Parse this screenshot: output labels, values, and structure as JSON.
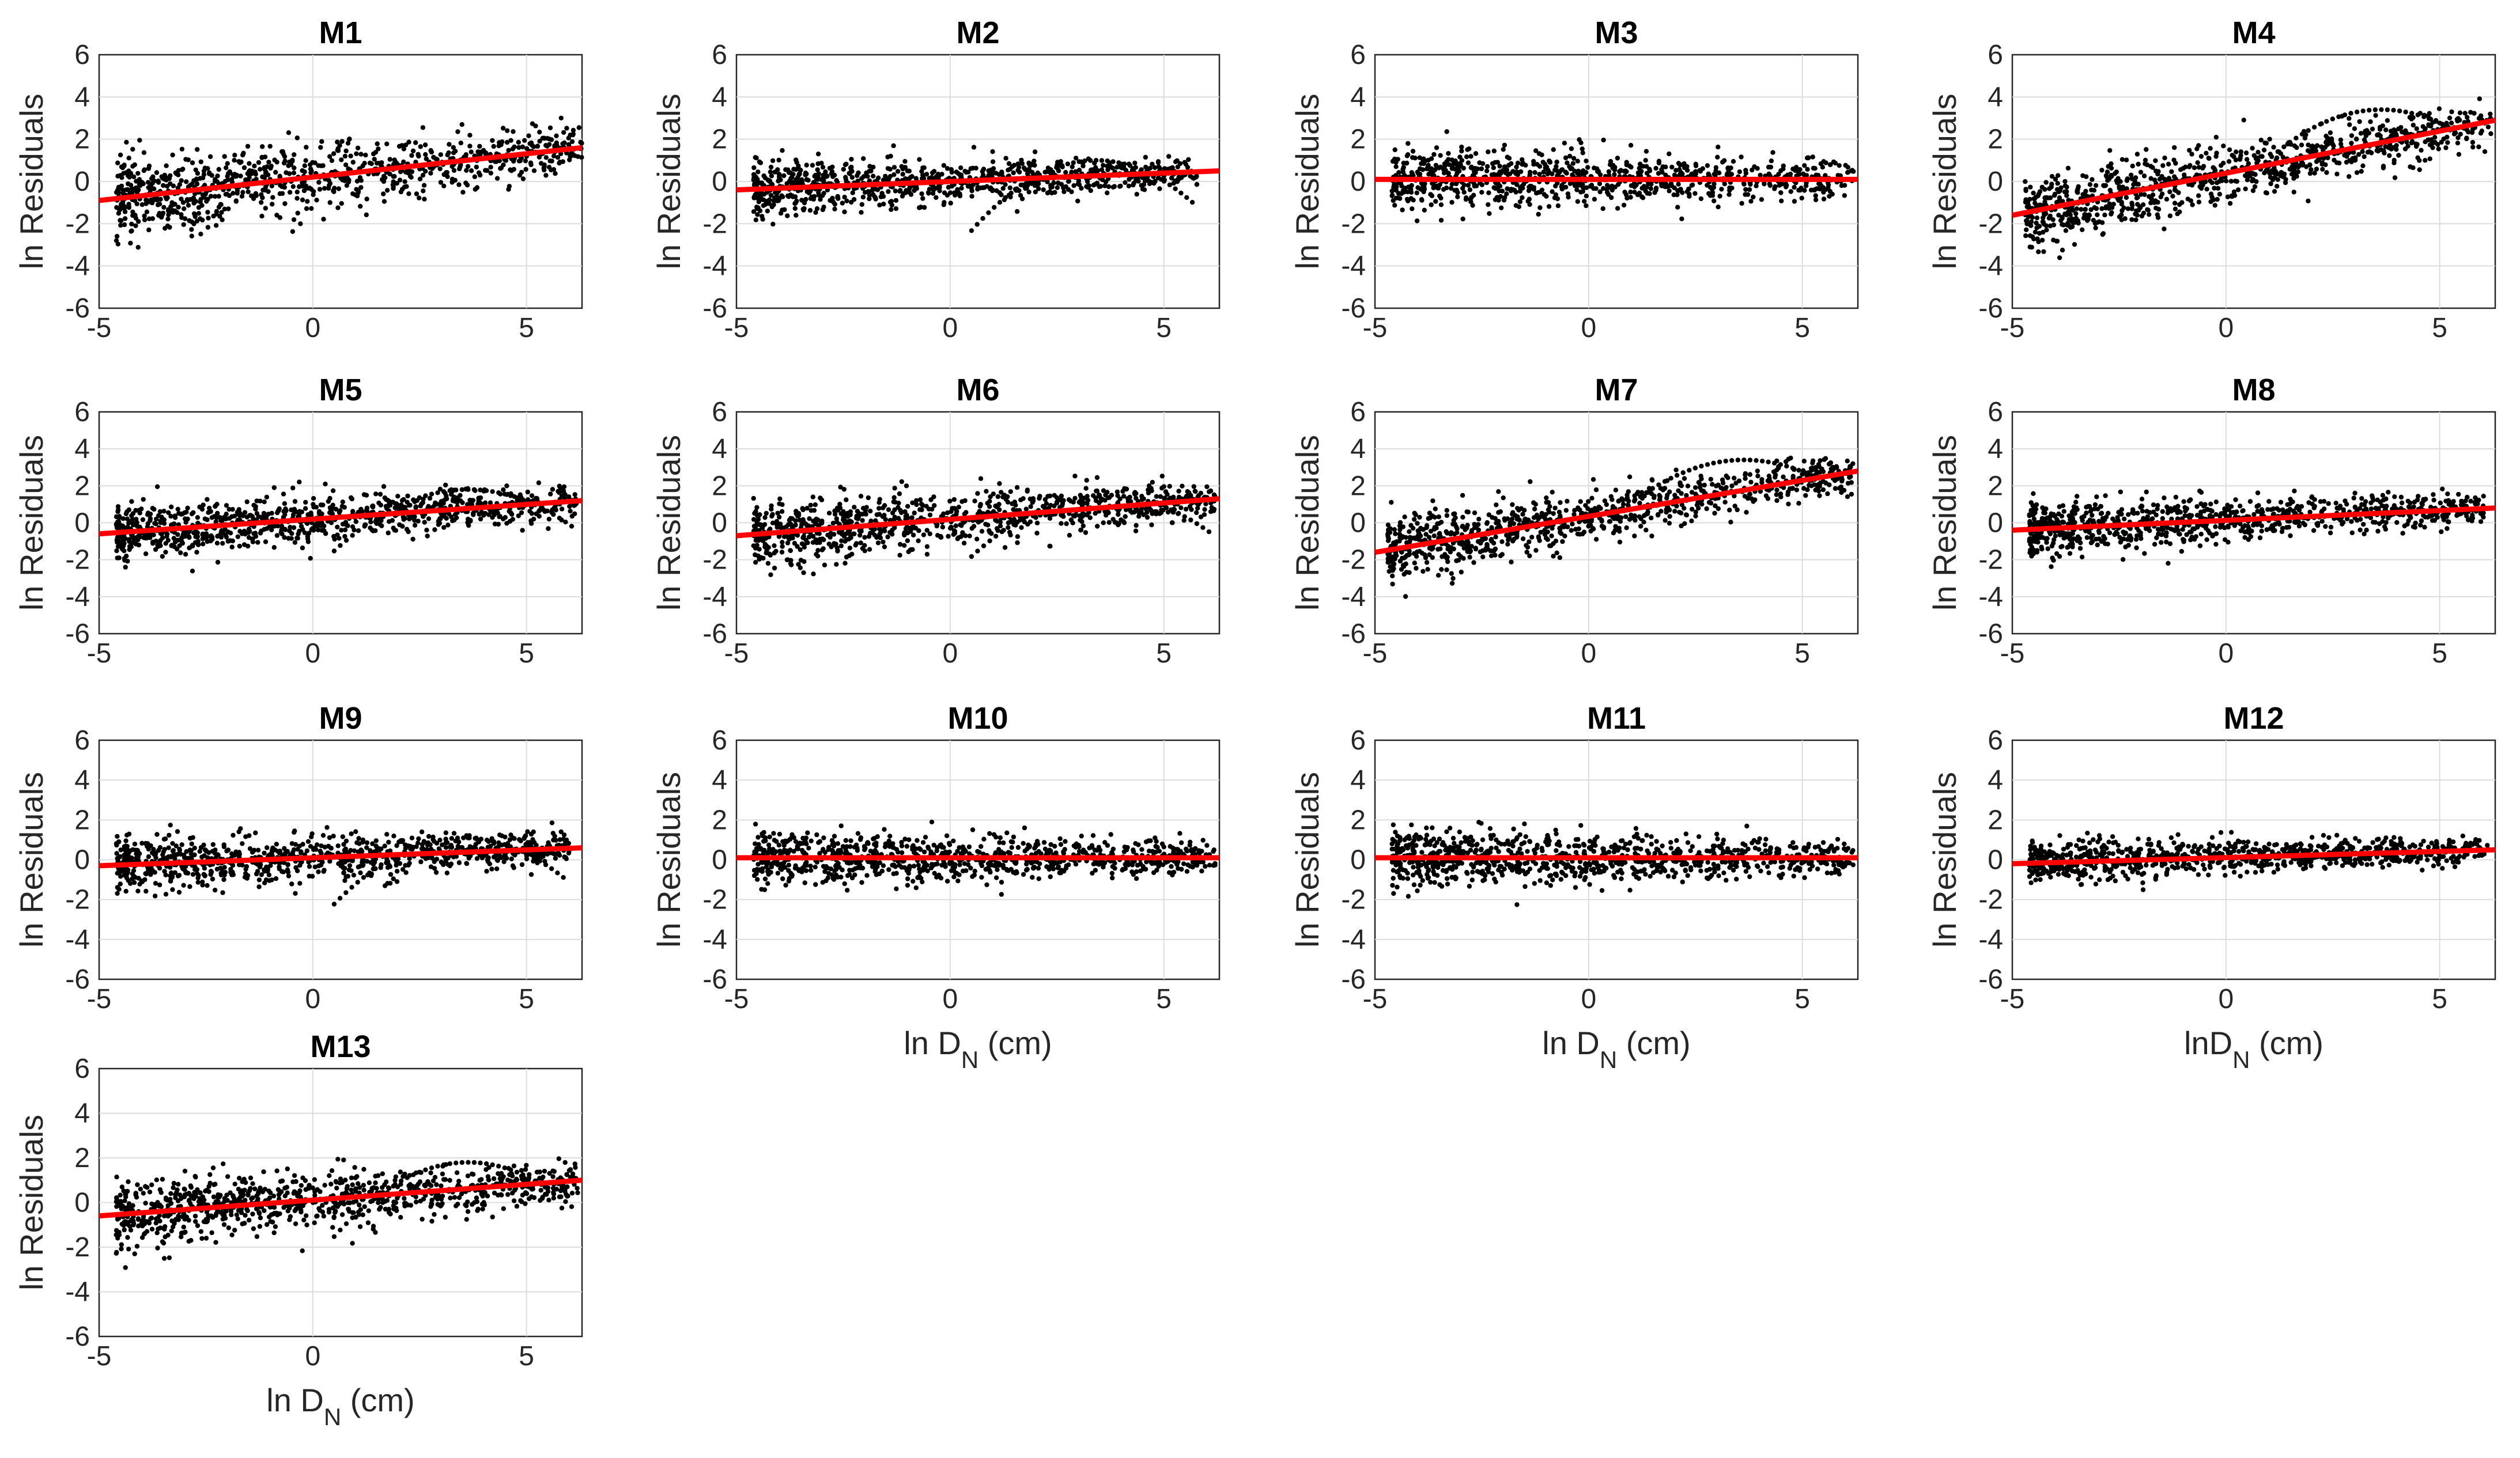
{
  "figure": {
    "background": "#ffffff",
    "point_color": "#000000",
    "fit_color": "#ff0000"
  },
  "chart_data": [
    {
      "type": "scatter",
      "title": "M1",
      "ylabel": "ln Residuals",
      "xlabel": "",
      "xlim": [
        -5,
        6.3
      ],
      "ylim": [
        -6,
        6
      ],
      "xticks": [
        -5,
        0,
        5
      ],
      "yticks": [
        -6,
        -4,
        -2,
        0,
        2,
        4,
        6
      ],
      "grid": true,
      "fit_line": {
        "x": [
          -5,
          6.3
        ],
        "y": [
          -0.9,
          1.6
        ]
      },
      "scatter_summary": {
        "x_range": [
          -4.6,
          6.3
        ],
        "trend_slope": 0.22,
        "spread": 1.1,
        "arc_peak": null,
        "cloud_top_x": 3.5
      }
    },
    {
      "type": "scatter",
      "title": "M2",
      "ylabel": "ln Residuals",
      "xlabel": "",
      "xlim": [
        -5,
        6.3
      ],
      "ylim": [
        -6,
        6
      ],
      "xticks": [
        -5,
        0,
        5
      ],
      "yticks": [
        -6,
        -4,
        -2,
        0,
        2,
        4,
        6
      ],
      "grid": true,
      "fit_line": {
        "x": [
          -5,
          6.3
        ],
        "y": [
          -0.4,
          0.5
        ]
      },
      "scatter_summary": {
        "x_range": [
          -4.6,
          5.8
        ],
        "trend_slope": 0.08,
        "spread": 0.7,
        "arc_peak": 1.0,
        "cloud_top_x": 2.0
      }
    },
    {
      "type": "scatter",
      "title": "M3",
      "ylabel": "ln Residuals",
      "xlabel": "",
      "xlim": [
        -5,
        6.3
      ],
      "ylim": [
        -6,
        6
      ],
      "xticks": [
        -5,
        0,
        5
      ],
      "yticks": [
        -6,
        -4,
        -2,
        0,
        2,
        4,
        6
      ],
      "grid": true,
      "fit_line": {
        "x": [
          -5,
          6.3
        ],
        "y": [
          0.1,
          0.1
        ]
      },
      "scatter_summary": {
        "x_range": [
          -4.6,
          6.2
        ],
        "trend_slope": 0.0,
        "spread": 0.9,
        "arc_peak": null,
        "cloud_top_x": -2.0
      }
    },
    {
      "type": "scatter",
      "title": "M4",
      "ylabel": "ln Residuals",
      "xlabel": "",
      "xlim": [
        -5,
        6.3
      ],
      "ylim": [
        -6,
        6
      ],
      "xticks": [
        -5,
        0,
        5
      ],
      "yticks": [
        -6,
        -4,
        -2,
        0,
        2,
        4,
        6
      ],
      "grid": true,
      "fit_line": {
        "x": [
          -5,
          6.3
        ],
        "y": [
          -1.6,
          2.9
        ]
      },
      "scatter_summary": {
        "x_range": [
          -4.7,
          6.2
        ],
        "trend_slope": 0.45,
        "spread": 1.0,
        "arc_peak": 3.4,
        "cloud_top_x": 3.0
      }
    },
    {
      "type": "scatter",
      "title": "M5",
      "ylabel": "ln Residuals",
      "xlabel": "",
      "xlim": [
        -5,
        6.3
      ],
      "ylim": [
        -6,
        6
      ],
      "xticks": [
        -5,
        0,
        5
      ],
      "yticks": [
        -6,
        -4,
        -2,
        0,
        2,
        4,
        6
      ],
      "grid": true,
      "fit_line": {
        "x": [
          -5,
          6.3
        ],
        "y": [
          -0.6,
          1.2
        ]
      },
      "scatter_summary": {
        "x_range": [
          -4.6,
          6.2
        ],
        "trend_slope": 0.2,
        "spread": 0.9,
        "arc_peak": 1.8,
        "cloud_top_x": 2.5
      }
    },
    {
      "type": "scatter",
      "title": "M6",
      "ylabel": "ln Residuals",
      "xlabel": "",
      "xlim": [
        -5,
        6.3
      ],
      "ylim": [
        -6,
        6
      ],
      "xticks": [
        -5,
        0,
        5
      ],
      "yticks": [
        -6,
        -4,
        -2,
        0,
        2,
        4,
        6
      ],
      "grid": true,
      "fit_line": {
        "x": [
          -5,
          6.3
        ],
        "y": [
          -0.7,
          1.3
        ]
      },
      "scatter_summary": {
        "x_range": [
          -4.6,
          6.2
        ],
        "trend_slope": 0.22,
        "spread": 1.0,
        "arc_peak": 1.5,
        "cloud_top_x": 2.0
      }
    },
    {
      "type": "scatter",
      "title": "M7",
      "ylabel": "ln Residuals",
      "xlabel": "",
      "xlim": [
        -5,
        6.3
      ],
      "ylim": [
        -6,
        6
      ],
      "xticks": [
        -5,
        0,
        5
      ],
      "yticks": [
        -6,
        -4,
        -2,
        0,
        2,
        4,
        6
      ],
      "grid": true,
      "fit_line": {
        "x": [
          -5,
          6.3
        ],
        "y": [
          -1.6,
          2.8
        ]
      },
      "scatter_summary": {
        "x_range": [
          -4.7,
          6.2
        ],
        "trend_slope": 0.45,
        "spread": 1.0,
        "arc_peak": 3.4,
        "cloud_top_x": 3.0
      }
    },
    {
      "type": "scatter",
      "title": "M8",
      "ylabel": "ln Residuals",
      "xlabel": "",
      "xlim": [
        -5,
        6.3
      ],
      "ylim": [
        -6,
        6
      ],
      "xticks": [
        -5,
        0,
        5
      ],
      "yticks": [
        -6,
        -4,
        -2,
        0,
        2,
        4,
        6
      ],
      "grid": true,
      "fit_line": {
        "x": [
          -5,
          6.3
        ],
        "y": [
          -0.4,
          0.8
        ]
      },
      "scatter_summary": {
        "x_range": [
          -4.6,
          6.1
        ],
        "trend_slope": 0.12,
        "spread": 0.8,
        "arc_peak": null,
        "cloud_top_x": 1.5
      }
    },
    {
      "type": "scatter",
      "title": "M9",
      "ylabel": "ln Residuals",
      "xlabel": "",
      "xlim": [
        -5,
        6.3
      ],
      "ylim": [
        -6,
        6
      ],
      "xticks": [
        -5,
        0,
        5
      ],
      "yticks": [
        -6,
        -4,
        -2,
        0,
        2,
        4,
        6
      ],
      "grid": true,
      "fit_line": {
        "x": [
          -5,
          6.3
        ],
        "y": [
          -0.3,
          0.6
        ]
      },
      "scatter_summary": {
        "x_range": [
          -4.6,
          6.0
        ],
        "trend_slope": 0.08,
        "spread": 0.8,
        "arc_peak": 1.1,
        "cloud_top_x": 1.5
      }
    },
    {
      "type": "scatter",
      "title": "M10",
      "ylabel": "ln Residuals",
      "xlabel": "ln D_N (cm)",
      "xlim": [
        -5,
        6.3
      ],
      "ylim": [
        -6,
        6
      ],
      "xticks": [
        -5,
        0,
        5
      ],
      "yticks": [
        -6,
        -4,
        -2,
        0,
        2,
        4,
        6
      ],
      "grid": true,
      "fit_line": {
        "x": [
          -5,
          6.3
        ],
        "y": [
          0.1,
          0.1
        ]
      },
      "scatter_summary": {
        "x_range": [
          -4.6,
          6.2
        ],
        "trend_slope": 0.0,
        "spread": 0.8,
        "arc_peak": null,
        "cloud_top_x": -2.0
      }
    },
    {
      "type": "scatter",
      "title": "M11",
      "ylabel": "ln Residuals",
      "xlabel": "ln D_N (cm)",
      "xlim": [
        -5,
        6.3
      ],
      "ylim": [
        -6,
        6
      ],
      "xticks": [
        -5,
        0,
        5
      ],
      "yticks": [
        -6,
        -4,
        -2,
        0,
        2,
        4,
        6
      ],
      "grid": true,
      "fit_line": {
        "x": [
          -5,
          6.3
        ],
        "y": [
          0.1,
          0.1
        ]
      },
      "scatter_summary": {
        "x_range": [
          -4.6,
          6.2
        ],
        "trend_slope": 0.0,
        "spread": 0.8,
        "arc_peak": null,
        "cloud_top_x": -2.0
      }
    },
    {
      "type": "scatter",
      "title": "M12",
      "ylabel": "ln Residuals",
      "xlabel": "lnD_N (cm)",
      "xlim": [
        -5,
        6.3
      ],
      "ylim": [
        -6,
        6
      ],
      "xticks": [
        -5,
        0,
        5
      ],
      "yticks": [
        -6,
        -4,
        -2,
        0,
        2,
        4,
        6
      ],
      "grid": true,
      "fit_line": {
        "x": [
          -5,
          6.3
        ],
        "y": [
          -0.2,
          0.5
        ]
      },
      "scatter_summary": {
        "x_range": [
          -4.6,
          6.2
        ],
        "trend_slope": 0.06,
        "spread": 0.6,
        "arc_peak": null,
        "cloud_top_x": 0.0
      }
    },
    {
      "type": "scatter",
      "title": "M13",
      "ylabel": "ln Residuals",
      "xlabel": "ln D_N (cm)",
      "xlim": [
        -5,
        6.3
      ],
      "ylim": [
        -6,
        6
      ],
      "xticks": [
        -5,
        0,
        5
      ],
      "yticks": [
        -6,
        -4,
        -2,
        0,
        2,
        4,
        6
      ],
      "grid": true,
      "fit_line": {
        "x": [
          -5,
          6.3
        ],
        "y": [
          -0.6,
          1.0
        ]
      },
      "scatter_summary": {
        "x_range": [
          -4.6,
          6.2
        ],
        "trend_slope": 0.18,
        "spread": 0.9,
        "arc_peak": 1.8,
        "cloud_top_x": 2.5
      }
    }
  ]
}
